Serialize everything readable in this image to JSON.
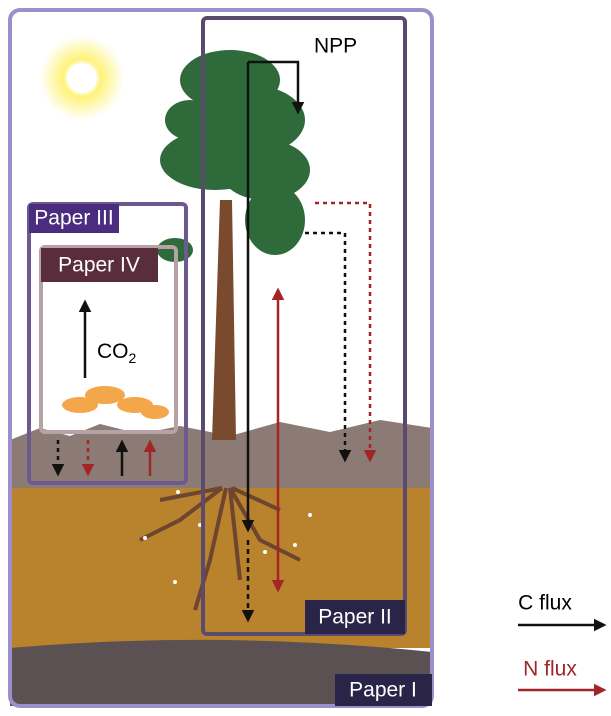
{
  "labels": {
    "npp": "NPP",
    "co2": {
      "main": "CO",
      "subscript": "2"
    }
  },
  "boxes": {
    "paper_1": "Paper I",
    "paper_2": "Paper II",
    "paper_3": "Paper III",
    "paper_4": "Paper IV"
  },
  "legend": {
    "c_flux": "C flux",
    "n_flux": "N flux"
  }
}
